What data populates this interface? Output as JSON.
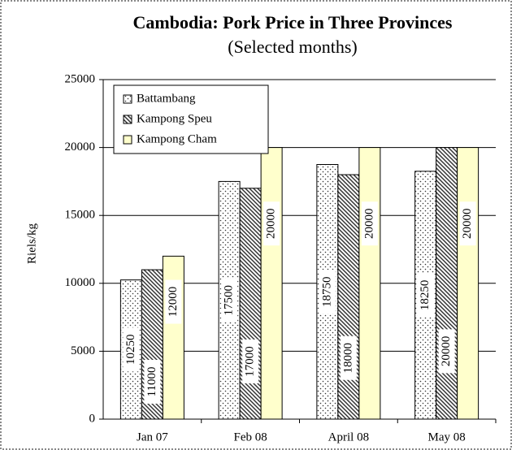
{
  "chart_data": {
    "type": "bar",
    "title": "Cambodia: Pork Price in Three Provinces",
    "subtitle": "(Selected months)",
    "y_label": "Riels/kg",
    "categories": [
      "Jan 07",
      "Feb 08",
      "April 08",
      "May 08"
    ],
    "series": [
      {
        "name": "Battambang",
        "color": "#ffffff",
        "pattern": "dots",
        "values": [
          10250,
          17500,
          18750,
          18250
        ]
      },
      {
        "name": "Kampong Speu",
        "color": "#ffffff",
        "pattern": "diagonal",
        "values": [
          11000,
          17000,
          18000,
          20000
        ]
      },
      {
        "name": "Kampong Cham",
        "color": "#ffffcc",
        "pattern": "solid",
        "values": [
          12000,
          20000,
          20000,
          20000
        ]
      }
    ],
    "ylim": [
      0,
      25000
    ],
    "yticks": [
      0,
      5000,
      10000,
      15000,
      20000,
      25000
    ],
    "grid": true,
    "legend": "upper left"
  }
}
